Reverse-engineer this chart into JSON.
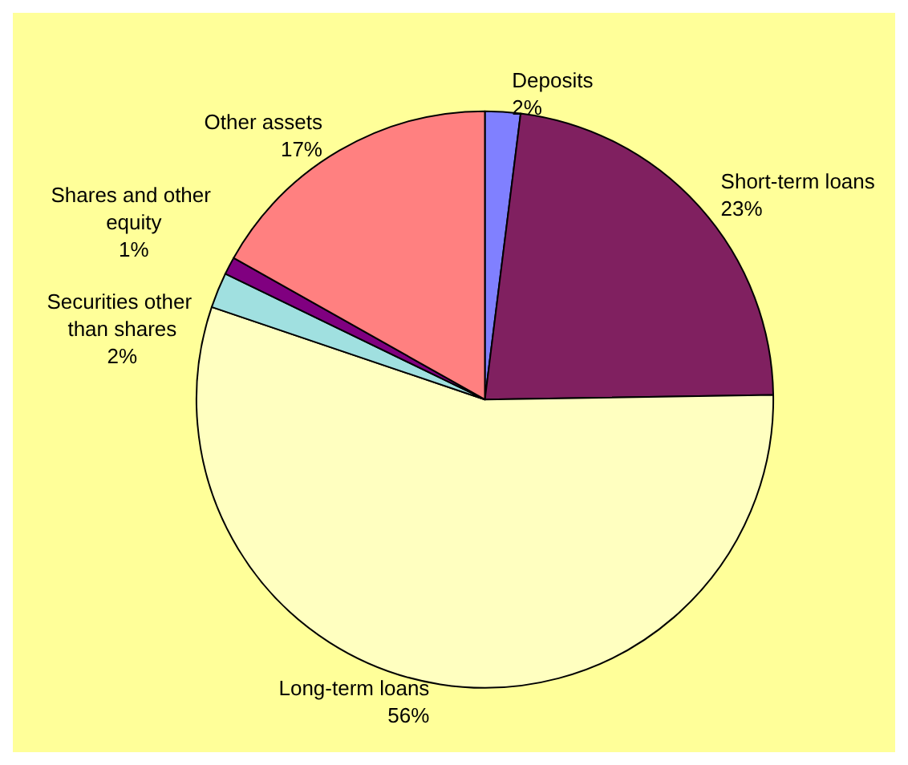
{
  "chart_data": {
    "type": "pie",
    "categories": [
      "Deposits",
      "Short-term loans",
      "Long-term loans",
      "Securities other than shares",
      "Shares and other equity",
      "Other assets"
    ],
    "values": [
      2,
      23,
      56,
      2,
      1,
      17
    ],
    "value_labels": [
      "2%",
      "23%",
      "56%",
      "2%",
      "1%",
      "17%"
    ],
    "colors": [
      "#8080ff",
      "#802060",
      "#ffffc0",
      "#a0e0e0",
      "#800080",
      "#ff8080"
    ]
  }
}
